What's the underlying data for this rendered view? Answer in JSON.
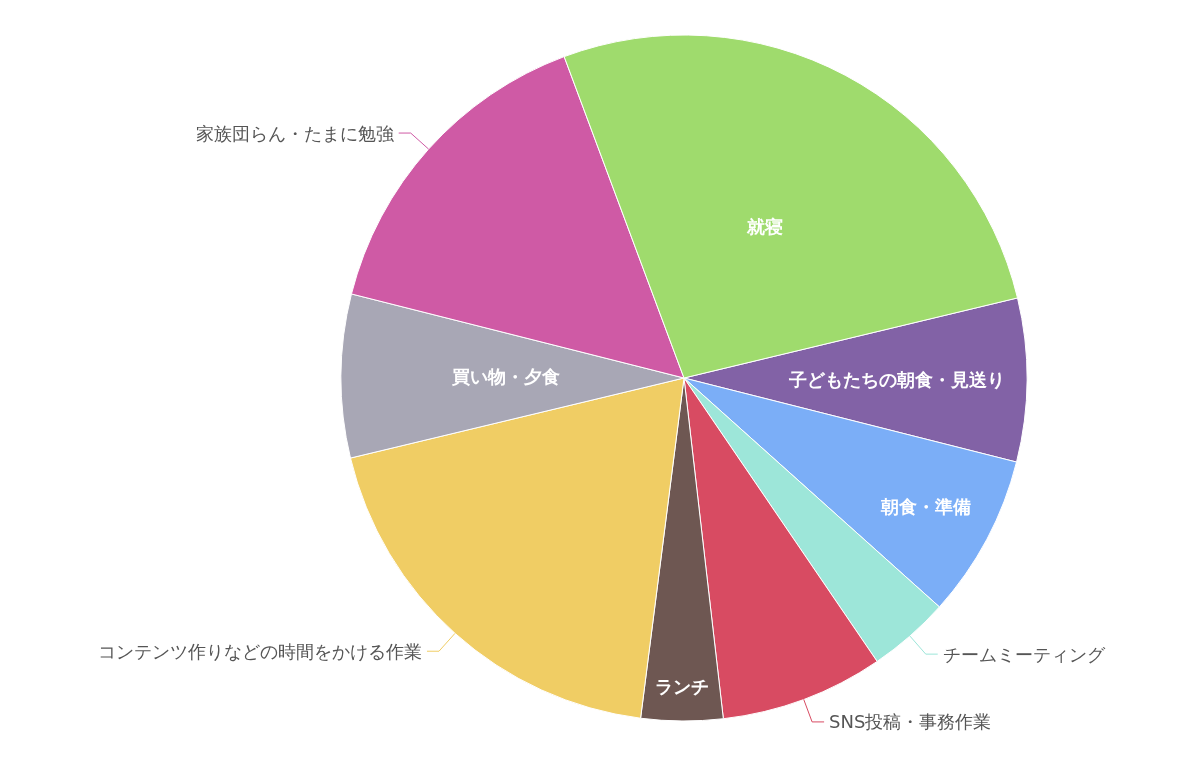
{
  "chart_data": {
    "type": "pie",
    "categories": [
      "子どもたちの朝食・見送り",
      "朝食・準備",
      "チームミーティング",
      "SNS投稿・事務作業",
      "ランチ",
      "コンテンツ作りなどの時間をかける作業",
      "買い物・夕食",
      "家族団らん・たまに勉強",
      "就寝"
    ],
    "values": [
      7.69,
      7.69,
      3.85,
      7.69,
      3.85,
      19.23,
      7.69,
      15.38,
      26.93
    ],
    "colors": [
      "#8262a6",
      "#7baef7",
      "#9de6d9",
      "#d84b62",
      "#6e5752",
      "#f0cd64",
      "#a8a7b5",
      "#cf5aa5",
      "#9fdb6d"
    ]
  }
}
